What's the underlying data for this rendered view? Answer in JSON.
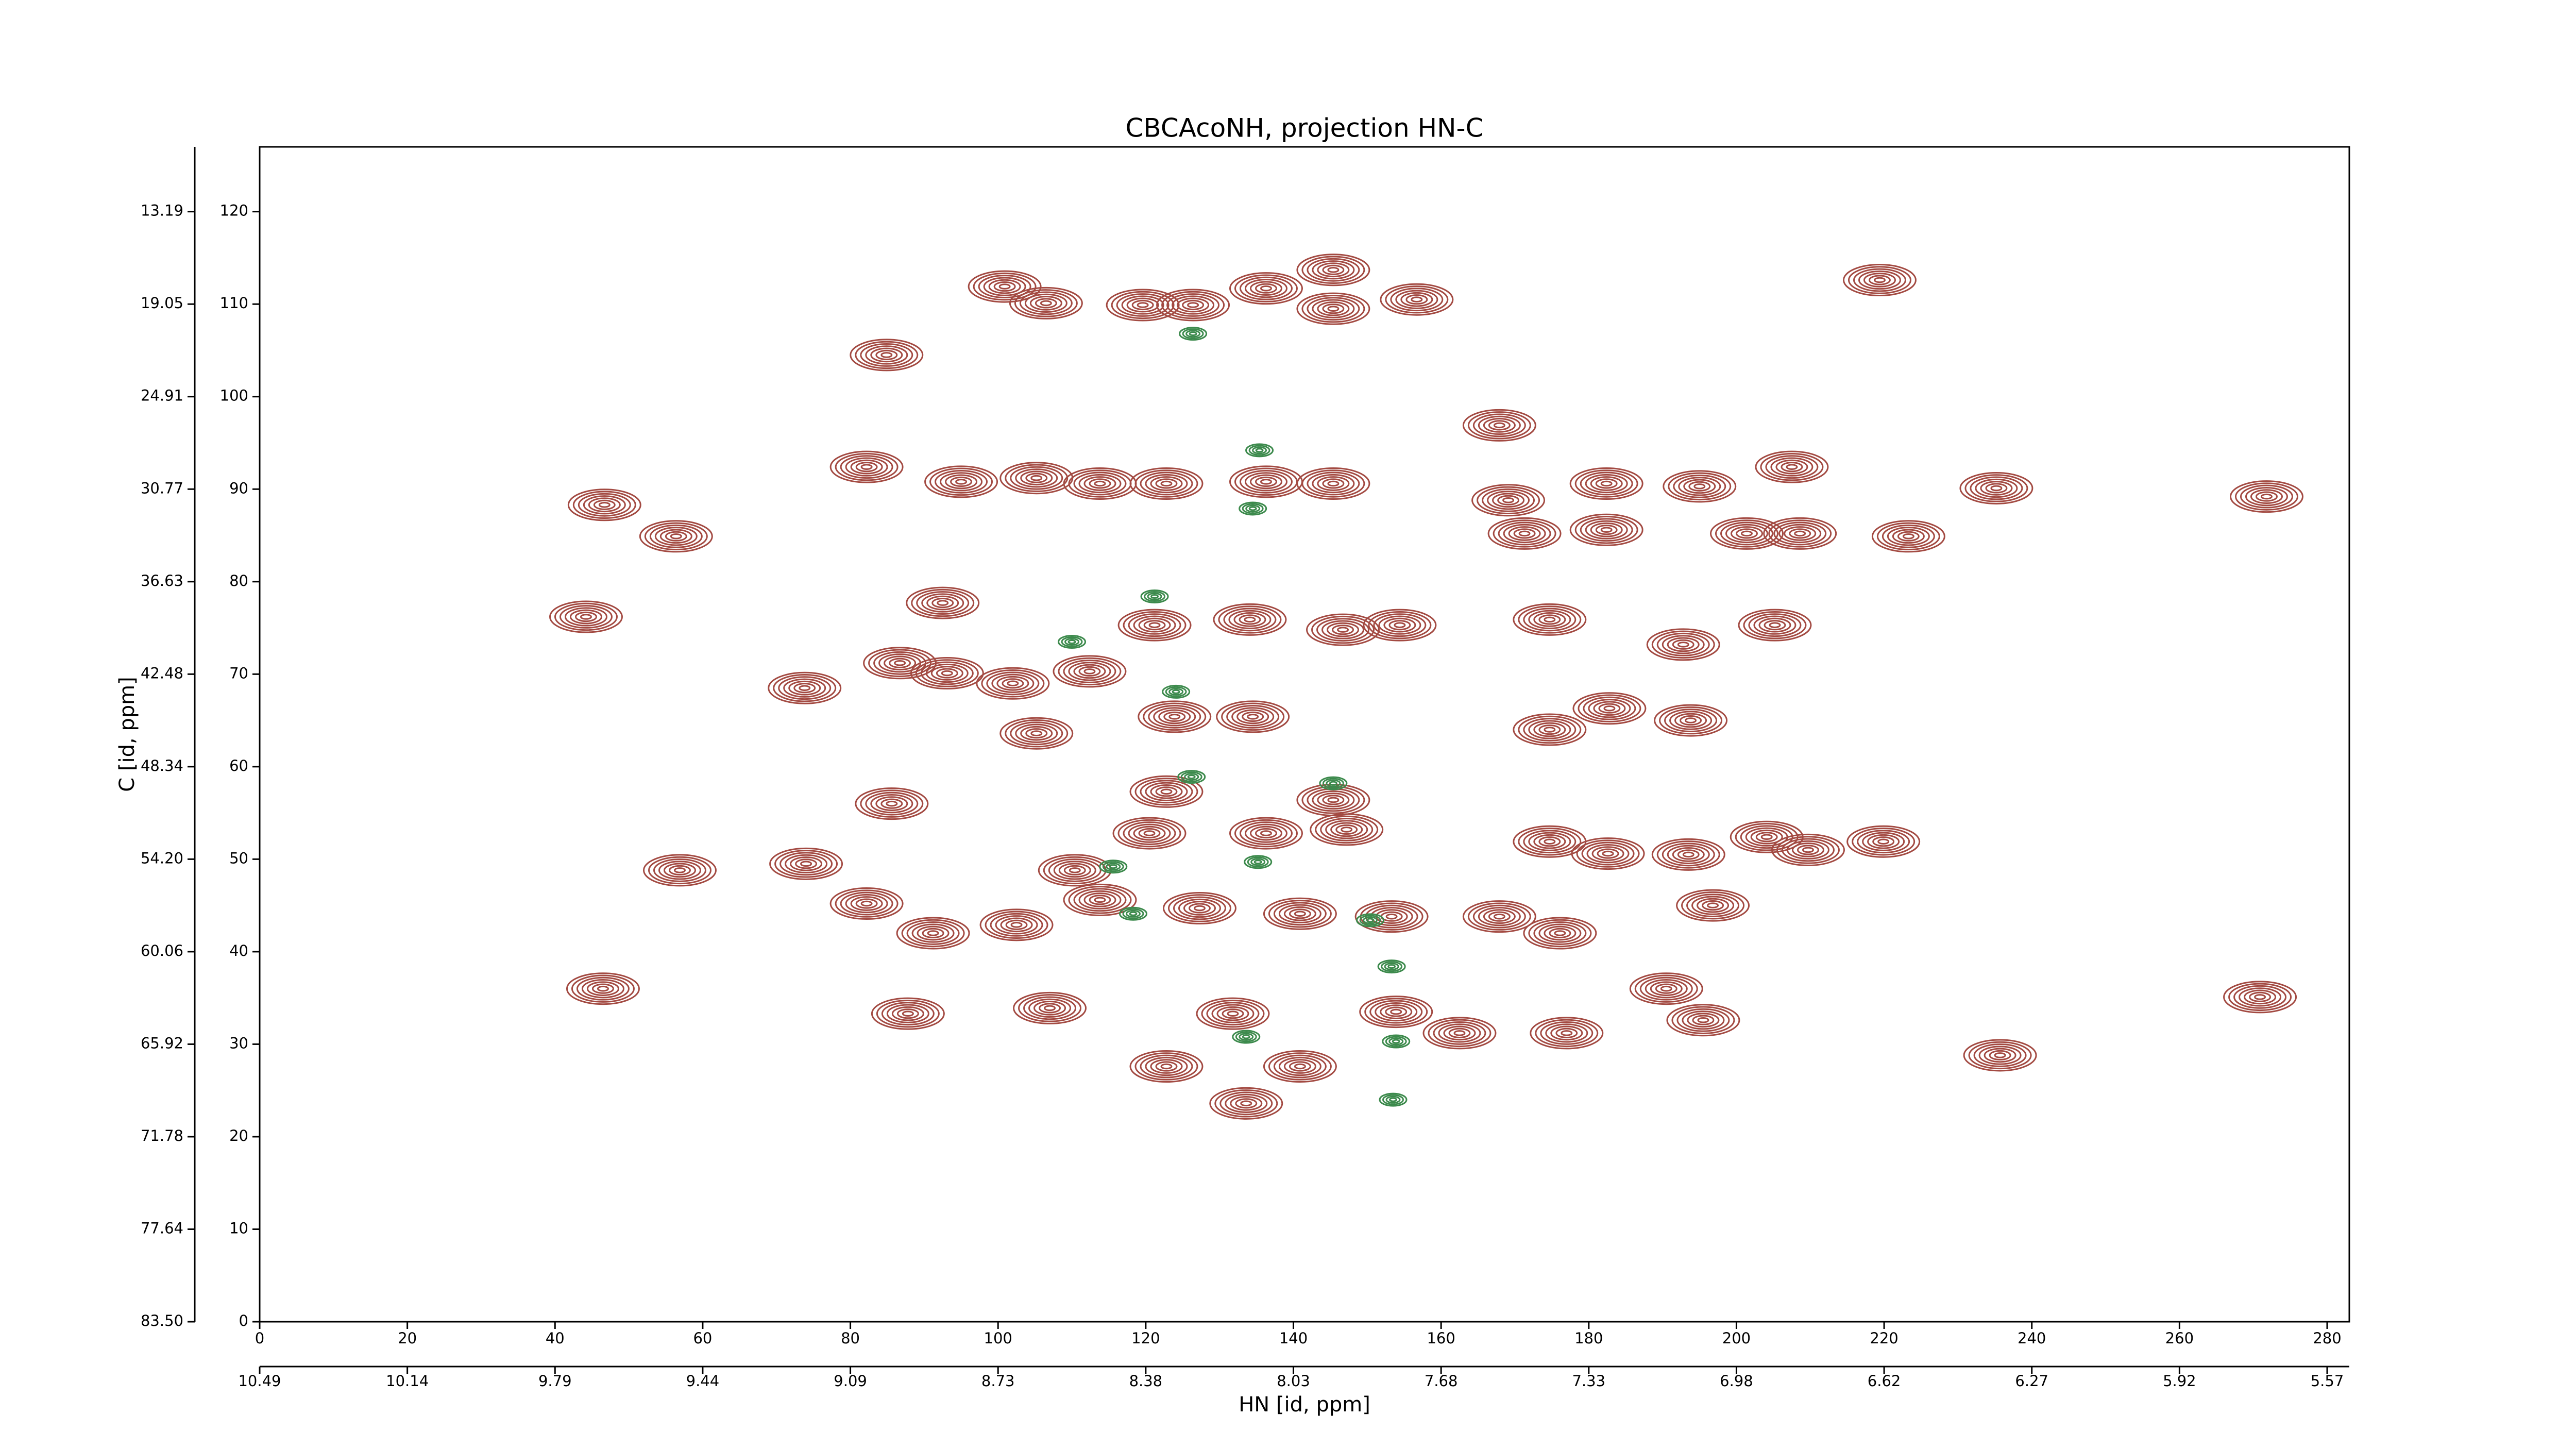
{
  "chart_data": {
    "type": "contour",
    "title": "CBCAcoNH, projection HN-C",
    "x_label": "HN [id, ppm]",
    "y_label": "C [id, ppm]",
    "xlim": [
      0,
      283
    ],
    "ylim": [
      0,
      127
    ],
    "xticks": [
      0,
      20,
      40,
      60,
      80,
      100,
      120,
      140,
      160,
      180,
      200,
      220,
      240,
      260,
      280
    ],
    "yticks": [
      0,
      10,
      20,
      30,
      40,
      50,
      60,
      70,
      80,
      90,
      100,
      110,
      120
    ],
    "x2ticks": [
      {
        "value": 0,
        "label": "10.49"
      },
      {
        "value": 20,
        "label": "10.14"
      },
      {
        "value": 40,
        "label": "9.79"
      },
      {
        "value": 60,
        "label": "9.44"
      },
      {
        "value": 80,
        "label": "9.09"
      },
      {
        "value": 100,
        "label": "8.73"
      },
      {
        "value": 120,
        "label": "8.38"
      },
      {
        "value": 140,
        "label": "8.03"
      },
      {
        "value": 160,
        "label": "7.68"
      },
      {
        "value": 180,
        "label": "7.33"
      },
      {
        "value": 200,
        "label": "6.98"
      },
      {
        "value": 220,
        "label": "6.62"
      },
      {
        "value": 240,
        "label": "6.27"
      },
      {
        "value": 260,
        "label": "5.92"
      },
      {
        "value": 280,
        "label": "5.57"
      }
    ],
    "y2ticks": [
      {
        "value": 0,
        "label": "83.50"
      },
      {
        "value": 10,
        "label": "77.64"
      },
      {
        "value": 20,
        "label": "71.78"
      },
      {
        "value": 30,
        "label": "65.92"
      },
      {
        "value": 40,
        "label": "60.06"
      },
      {
        "value": 50,
        "label": "54.20"
      },
      {
        "value": 60,
        "label": "48.34"
      },
      {
        "value": 70,
        "label": "42.48"
      },
      {
        "value": 80,
        "label": "36.63"
      },
      {
        "value": 90,
        "label": "30.77"
      },
      {
        "value": 100,
        "label": "24.91"
      },
      {
        "value": 110,
        "label": "19.05"
      },
      {
        "value": 120,
        "label": "13.19"
      }
    ],
    "peaks": [
      {
        "color": "#a34a42",
        "x": [
          100.9,
          106.5,
          119.6,
          126.4,
          136.3,
          145.4,
          145.4,
          156.7,
          219.4,
          84.9,
          46.7,
          56.4,
          82.2,
          95.0,
          105.2,
          113.8,
          122.8,
          136.3,
          145.4,
          167.9,
          169.1,
          171.3,
          182.4,
          182.4,
          195.0,
          201.4,
          207.5,
          208.6,
          223.3,
          235.2,
          271.8,
          44.2,
          92.5,
          86.7,
          93.1,
          102.0,
          112.4,
          121.2,
          134.1,
          146.7,
          154.4,
          174.7,
          192.8,
          205.2,
          73.8,
          105.2,
          123.9,
          134.5,
          174.7,
          182.8,
          193.8,
          85.6,
          122.8,
          145.4,
          56.9,
          74.0,
          110.4,
          120.5,
          136.3,
          147.2,
          174.7,
          182.6,
          193.5,
          204.1,
          209.7,
          219.9,
          82.2,
          91.2,
          102.5,
          113.8,
          127.3,
          140.9,
          153.3,
          167.9,
          176.1,
          196.8,
          46.5,
          87.8,
          107.0,
          131.8,
          153.9,
          177.0,
          190.5,
          195.5,
          122.8,
          140.9,
          162.5,
          235.7,
          270.9,
          133.6
        ],
        "y": [
          111.9,
          110.1,
          109.9,
          109.9,
          111.7,
          113.7,
          109.5,
          110.5,
          112.6,
          104.5,
          88.3,
          84.9,
          92.4,
          90.8,
          91.2,
          90.6,
          90.6,
          90.8,
          90.6,
          96.9,
          88.8,
          85.2,
          90.6,
          85.6,
          90.3,
          85.2,
          92.4,
          85.2,
          84.9,
          90.1,
          89.2,
          76.2,
          77.7,
          71.2,
          70.1,
          69.0,
          70.3,
          75.3,
          75.9,
          74.8,
          75.3,
          75.9,
          73.2,
          75.3,
          68.5,
          63.6,
          65.4,
          65.4,
          64.0,
          66.3,
          65.0,
          56.0,
          57.3,
          56.4,
          48.8,
          49.5,
          48.8,
          52.8,
          52.8,
          53.2,
          51.9,
          50.6,
          50.5,
          52.4,
          51.0,
          51.9,
          45.2,
          42.0,
          42.9,
          45.6,
          44.7,
          44.1,
          43.8,
          43.8,
          42.0,
          45.0,
          36.0,
          33.3,
          33.9,
          33.3,
          33.5,
          31.2,
          36.0,
          32.6,
          27.6,
          27.6,
          31.2,
          28.8,
          35.1,
          23.6
        ]
      },
      {
        "color": "#3c8a4c",
        "x": [
          126.4,
          135.4,
          134.5,
          121.2,
          110.0,
          124.1,
          126.2,
          145.4,
          115.6,
          118.3,
          135.2,
          150.4,
          153.3,
          153.9,
          153.5,
          133.6
        ],
        "y": [
          106.8,
          94.2,
          87.9,
          78.4,
          73.5,
          68.1,
          58.9,
          58.2,
          49.2,
          44.1,
          49.7,
          43.4,
          38.4,
          30.3,
          24.0,
          30.8
        ]
      }
    ]
  }
}
